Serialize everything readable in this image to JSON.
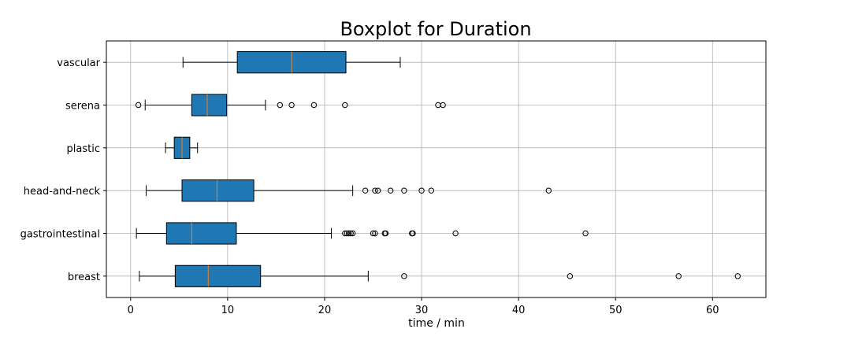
{
  "chart_data": {
    "type": "boxplot",
    "orientation": "horizontal",
    "title": "Boxplot for Duration",
    "xlabel": "time / min",
    "ylabel": "",
    "xlim": [
      -2.5,
      65.5
    ],
    "xticks": [
      0,
      10,
      20,
      30,
      40,
      50,
      60
    ],
    "grid": true,
    "box_color": "#1f77b4",
    "median_color": "#ff7f0e",
    "categories": [
      "vascular",
      "serena",
      "plastic",
      "head-and-neck",
      "gastrointestinal",
      "breast"
    ],
    "boxes": [
      {
        "label": "vascular",
        "whisker_low": 5.4,
        "q1": 11.0,
        "median": 16.6,
        "q3": 22.2,
        "whisker_high": 27.8,
        "outliers": []
      },
      {
        "label": "serena",
        "whisker_low": 1.5,
        "q1": 6.3,
        "median": 7.9,
        "q3": 9.9,
        "whisker_high": 13.9,
        "outliers": [
          0.8,
          15.4,
          16.6,
          18.9,
          22.1,
          31.7,
          32.2
        ]
      },
      {
        "label": "plastic",
        "whisker_low": 3.6,
        "q1": 4.5,
        "median": 5.3,
        "q3": 6.1,
        "whisker_high": 6.9,
        "outliers": []
      },
      {
        "label": "head-and-neck",
        "whisker_low": 1.6,
        "q1": 5.3,
        "median": 8.9,
        "q3": 12.7,
        "whisker_high": 22.9,
        "outliers": [
          24.2,
          25.2,
          25.5,
          26.8,
          28.2,
          30.0,
          31.0,
          43.1
        ]
      },
      {
        "label": "gastrointestinal",
        "whisker_low": 0.6,
        "q1": 3.7,
        "median": 6.3,
        "q3": 10.9,
        "whisker_high": 20.7,
        "outliers": [
          22.1,
          22.3,
          22.5,
          22.7,
          22.9,
          25.0,
          25.2,
          26.2,
          26.3,
          29.0,
          29.1,
          33.5,
          46.9
        ]
      },
      {
        "label": "breast",
        "whisker_low": 0.9,
        "q1": 4.6,
        "median": 8.0,
        "q3": 13.4,
        "whisker_high": 24.5,
        "outliers": [
          28.2,
          45.3,
          56.5,
          62.6
        ]
      }
    ]
  }
}
